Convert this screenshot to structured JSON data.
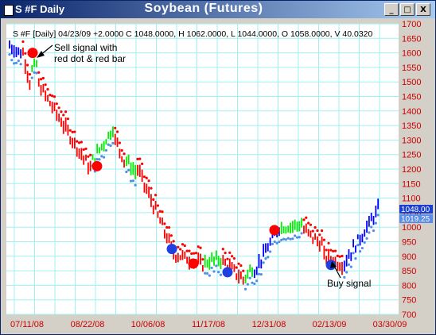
{
  "window": {
    "name": "S #F Daily",
    "title": "Soybean (Futures)",
    "controls": {
      "minimize": "_",
      "maximize": "□",
      "close": "X"
    }
  },
  "chart_info": "S #F [Daily] 04/23/09 +2.0000 C 1048.0000, H 1062.0000, L 1044.0000, O 1058.0000, V 40.0320",
  "annotations": {
    "sell_line1": "Sell signal with",
    "sell_line2": "red dot & red bar",
    "buy": "Buy signal"
  },
  "price_tags": {
    "close": "1048.00",
    "stop": "1019.25"
  },
  "colors": {
    "up": "#00ee00",
    "down": "#ff0000",
    "neutral": "#0000ff",
    "stop": "#4f8fe8",
    "grid": "#9ff0f0",
    "sell_dot": "#ff0000",
    "buy_dot": "#1f3fe0"
  },
  "chart_data": {
    "type": "bar",
    "ylim": [
      700,
      1700
    ],
    "y_ticks": [
      "1700",
      "1650",
      "1600",
      "1550",
      "1500",
      "1450",
      "1400",
      "1350",
      "1300",
      "1250",
      "1200",
      "1150",
      "1100",
      "1050",
      "1000",
      "950",
      "900",
      "850",
      "800",
      "750",
      "700"
    ],
    "x_ticks": [
      "07/11/08",
      "08/22/08",
      "10/06/08",
      "11/17/08",
      "12/31/08",
      "02/13/09",
      "03/30/09"
    ],
    "segments": [
      {
        "color": "neutral",
        "from": 1625,
        "to": 1600,
        "bars": 6
      },
      {
        "color": "down",
        "from": 1600,
        "to": 1500,
        "bars": 4
      },
      {
        "color": "up",
        "from": 1540,
        "to": 1560,
        "bars": 3
      },
      {
        "color": "down",
        "from": 1490,
        "to": 1200,
        "bars": 24
      },
      {
        "color": "up",
        "from": 1230,
        "to": 1340,
        "bars": 10
      },
      {
        "color": "down",
        "from": 1300,
        "to": 1230,
        "bars": 5
      },
      {
        "color": "up",
        "from": 1230,
        "to": 1190,
        "bars": 5
      },
      {
        "color": "down",
        "from": 1200,
        "to": 930,
        "bars": 16
      },
      {
        "color": "down",
        "from": 910,
        "to": 870,
        "bars": 14
      },
      {
        "color": "up",
        "from": 880,
        "to": 890,
        "bars": 8
      },
      {
        "color": "down",
        "from": 880,
        "to": 820,
        "bars": 10
      },
      {
        "color": "up",
        "from": 830,
        "to": 860,
        "bars": 4
      },
      {
        "color": "neutral",
        "from": 850,
        "to": 1000,
        "bars": 12
      },
      {
        "color": "up",
        "from": 1000,
        "to": 1010,
        "bars": 10
      },
      {
        "color": "down",
        "from": 990,
        "to": 940,
        "bars": 9
      },
      {
        "color": "down",
        "from": 900,
        "to": 870,
        "bars": 9
      },
      {
        "color": "neutral",
        "from": 880,
        "to": 1060,
        "bars": 16
      }
    ],
    "sell_dots": [
      1600,
      1210,
      875,
      990
    ],
    "buy_dots": [
      925,
      845,
      870
    ]
  }
}
